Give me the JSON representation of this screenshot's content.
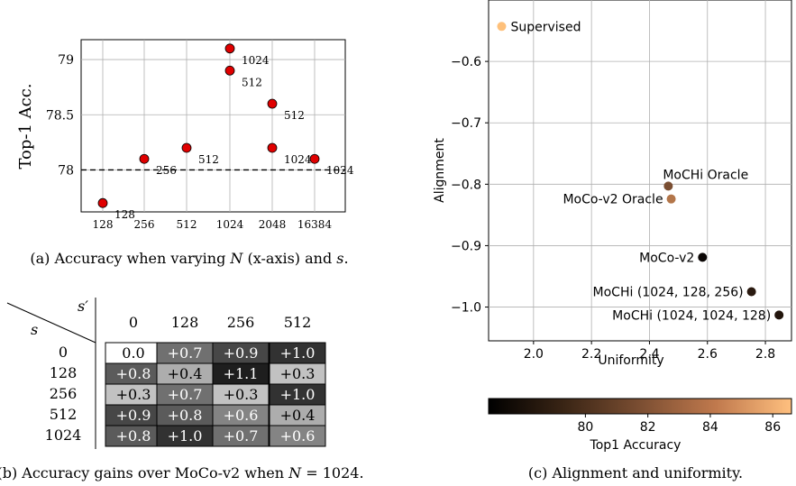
{
  "chart_data": [
    {
      "type": "scatter",
      "caption": "(a) Accuracy when varying N (x-axis) and s.",
      "ylabel": "Top-1 Acc.",
      "categories": [
        "128",
        "256",
        "512",
        "1024",
        "2048",
        "16384"
      ],
      "yticks": [
        "78",
        "78.5",
        "79"
      ],
      "ylim": [
        77.62,
        79.18
      ],
      "baseline": 78.0,
      "grid": true,
      "points": [
        {
          "x": "128",
          "y": 77.7,
          "label": "128"
        },
        {
          "x": "256",
          "y": 78.1,
          "label": "256"
        },
        {
          "x": "512",
          "y": 78.2,
          "label": "512"
        },
        {
          "x": "1024",
          "y": 79.1,
          "label": "1024"
        },
        {
          "x": "1024",
          "y": 78.9,
          "label": "512"
        },
        {
          "x": "2048",
          "y": 78.6,
          "label": "512"
        },
        {
          "x": "2048",
          "y": 78.2,
          "label": "1024"
        },
        {
          "x": "16384",
          "y": 78.1,
          "label": "1024"
        }
      ],
      "color": "#e00000"
    },
    {
      "type": "table",
      "caption": "(b) Accuracy gains over MoCo-v2 when N = 1024.",
      "row_header": "s",
      "col_header": "s′",
      "columns": [
        "0",
        "128",
        "256",
        "512"
      ],
      "rows": [
        {
          "s": "0",
          "cells": [
            "0.0",
            "+0.7",
            "+0.9",
            "+1.0"
          ]
        },
        {
          "s": "128",
          "cells": [
            "+0.8",
            "+0.4",
            "+1.1",
            "+0.3"
          ]
        },
        {
          "s": "256",
          "cells": [
            "+0.3",
            "+0.7",
            "+0.3",
            "+1.0"
          ]
        },
        {
          "s": "512",
          "cells": [
            "+0.9",
            "+0.8",
            "+0.6",
            "+0.4"
          ]
        },
        {
          "s": "1024",
          "cells": [
            "+0.8",
            "+1.0",
            "+0.7",
            "+0.6"
          ]
        }
      ]
    },
    {
      "type": "scatter",
      "caption": "(c) Alignment and uniformity.",
      "xlabel": "Uniformity",
      "ylabel": "Alignment",
      "xlim": [
        1.845,
        2.89
      ],
      "ylim": [
        -1.055,
        -0.5
      ],
      "xticks": [
        "2.0",
        "2.2",
        "2.4",
        "2.6",
        "2.8"
      ],
      "yticks": [
        "−0.6",
        "−0.7",
        "−0.8",
        "−0.9",
        "−1.0"
      ],
      "grid": true,
      "points": [
        {
          "label": "Supervised",
          "x": 1.89,
          "y": -0.543,
          "acc": 86.5,
          "color": "#fec07a"
        },
        {
          "label": "MoCHi Oracle",
          "x": 2.465,
          "y": -0.803,
          "acc": 79.6,
          "color": "#7a4e32"
        },
        {
          "label": "MoCo-v2 Oracle",
          "x": 2.475,
          "y": -0.824,
          "acc": 82.6,
          "color": "#b3764a"
        },
        {
          "label": "MoCo-v2",
          "x": 2.583,
          "y": -0.919,
          "acc": 77.0,
          "color": "#0b0705"
        },
        {
          "label": "MoCHi (1024, 128, 256)",
          "x": 2.752,
          "y": -0.975,
          "acc": 78.2,
          "color": "#2a1a10"
        },
        {
          "label": "MoCHi (1024, 1024, 128)",
          "x": 2.847,
          "y": -1.013,
          "acc": 78.0,
          "color": "#22150c"
        }
      ],
      "colorbar": {
        "label": "Top1 Accuracy",
        "ticks": [
          "80",
          "82",
          "84",
          "86"
        ],
        "range": [
          76.9,
          86.6
        ]
      }
    }
  ]
}
